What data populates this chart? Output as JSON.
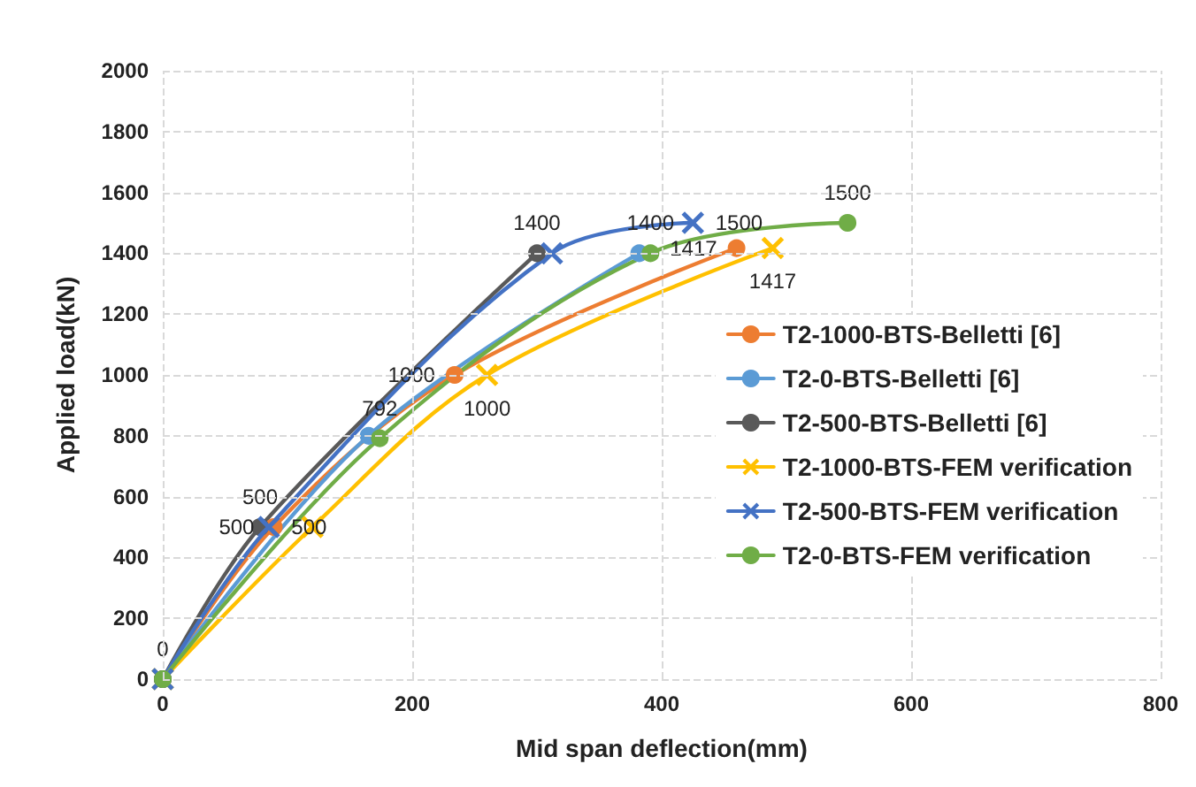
{
  "chart_data": {
    "type": "line",
    "xlabel": "Mid span deflection(mm)",
    "ylabel": "Applied load(kN)",
    "xlim": [
      0,
      800
    ],
    "xticks": [
      0,
      200,
      400,
      600,
      800
    ],
    "ylim": [
      0,
      2000
    ],
    "yticks": [
      0,
      200,
      400,
      600,
      800,
      1000,
      1200,
      1400,
      1600,
      1800,
      2000
    ],
    "grid": true,
    "legend": "right",
    "line_style": "solid",
    "series": [
      {
        "name": "T2-1000-BTS-Belletti [6]",
        "color": "#ed7d31",
        "marker": "circle",
        "x": [
          0,
          89,
          234,
          460
        ],
        "values": [
          0,
          500,
          1000,
          1417
        ],
        "value_labels": [
          null,
          "500",
          "1000",
          "1417"
        ]
      },
      {
        "name": "T2-0-BTS-Belletti [6]",
        "color": "#5b9bd5",
        "marker": "circle",
        "x": [
          0,
          165,
          382
        ],
        "values": [
          0,
          800,
          1400
        ]
      },
      {
        "name": "T2-500-BTS-Belletti [6]",
        "color": "#595959",
        "marker": "circle",
        "x": [
          0,
          78,
          300
        ],
        "values": [
          0,
          500,
          1400
        ],
        "value_labels": [
          "0",
          "500",
          "1400"
        ]
      },
      {
        "name": "T2-1000-BTS-FEM verification",
        "color": "#ffc000",
        "marker": "cross",
        "x": [
          0,
          120,
          260,
          489
        ],
        "values": [
          0,
          500,
          1000,
          1417
        ],
        "value_labels": [
          null,
          null,
          "1000",
          "1417"
        ]
      },
      {
        "name": "T2-500-BTS-FEM verification",
        "color": "#4472c4",
        "marker": "cross",
        "x": [
          0,
          85,
          312,
          425
        ],
        "values": [
          0,
          500,
          1400,
          1500
        ],
        "value_labels": [
          null,
          "500",
          null,
          "1500"
        ]
      },
      {
        "name": "T2-0-BTS-FEM verification",
        "color": "#70ad47",
        "marker": "circle",
        "x": [
          0,
          174,
          391,
          549
        ],
        "values": [
          0,
          792,
          1400,
          1500
        ],
        "value_labels": [
          null,
          "792",
          "1400",
          "1500"
        ]
      }
    ]
  }
}
